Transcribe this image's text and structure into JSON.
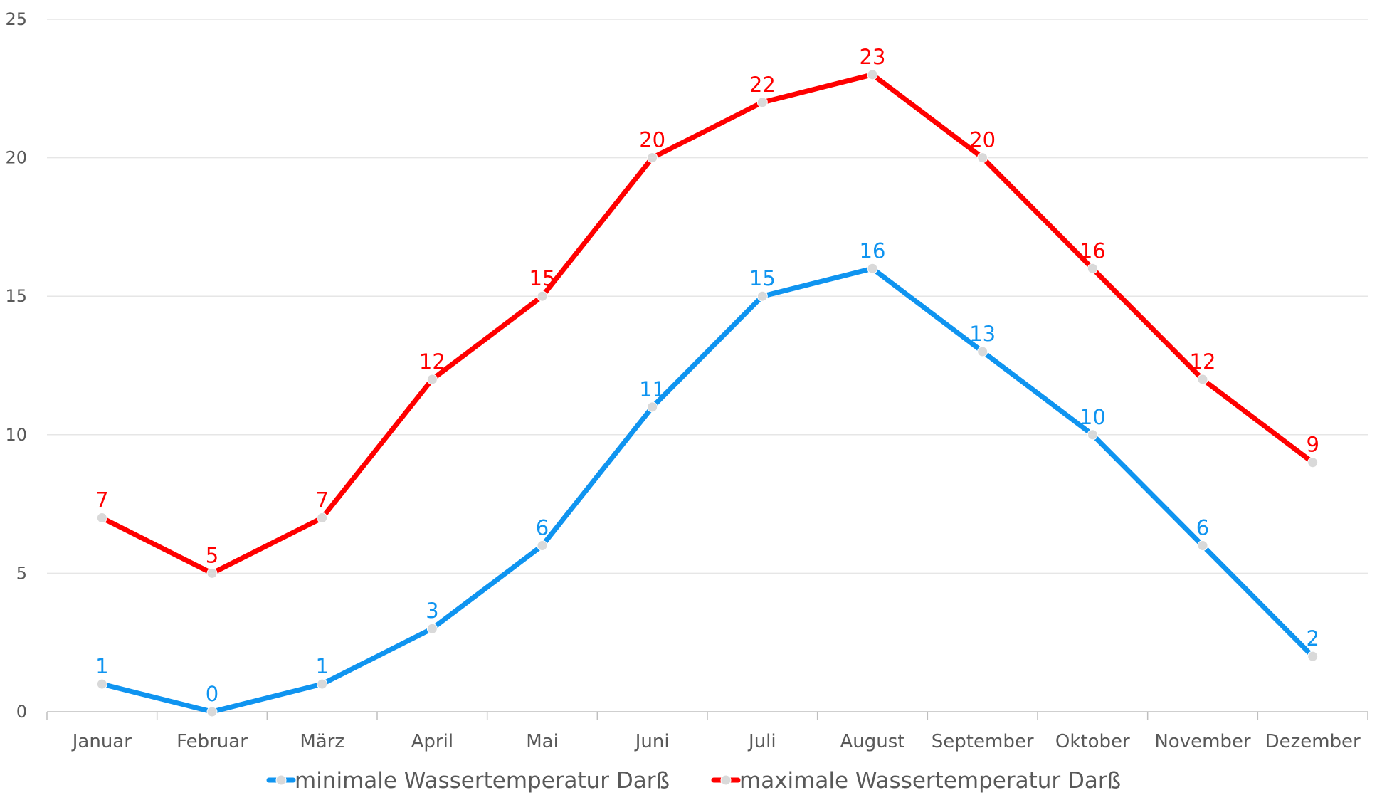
{
  "chart_data": {
    "type": "line",
    "title": "",
    "xlabel": "",
    "ylabel": "",
    "ylim": [
      0,
      25
    ],
    "yticks": [
      0,
      5,
      10,
      15,
      20,
      25
    ],
    "grid": "horizontal",
    "legend_position": "bottom",
    "categories": [
      "Januar",
      "Februar",
      "März",
      "April",
      "Mai",
      "Juni",
      "Juli",
      "August",
      "September",
      "Oktober",
      "November",
      "Dezember"
    ],
    "series": [
      {
        "name": "minimale Wassertemperatur Darß",
        "color": "#0f94f0",
        "values": [
          1,
          0,
          1,
          3,
          6,
          11,
          15,
          16,
          13,
          10,
          6,
          2
        ]
      },
      {
        "name": "maximale Wassertemperatur Darß",
        "color": "#ff0000",
        "values": [
          7,
          5,
          7,
          12,
          15,
          20,
          22,
          23,
          20,
          16,
          12,
          9
        ]
      }
    ],
    "marker_color": "#d9d9d9",
    "gridline_color": "#e6e6e6",
    "axis_color": "#bfbfbf",
    "text_color": "#595959"
  }
}
